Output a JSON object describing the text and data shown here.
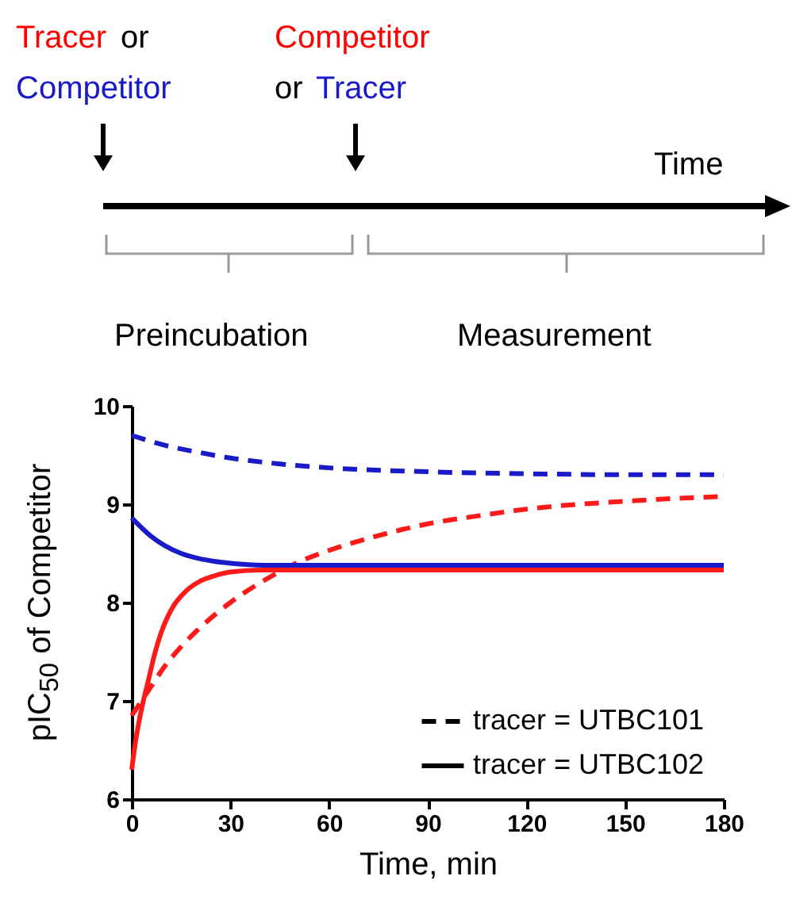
{
  "chart_data": {
    "type": "line",
    "xlabel": "Time, min",
    "ylabel": "pIC$_{50}$ of Competitor",
    "xlim": [
      0,
      180
    ],
    "xticks": [
      0,
      30,
      60,
      90,
      120,
      150,
      180
    ],
    "ylim": [
      6,
      10
    ],
    "yticks": [
      6,
      7,
      8,
      9,
      10
    ],
    "annotations": [
      "Tracer",
      "or",
      "Competitor",
      "Competitor",
      "or",
      "Tracer",
      "Time",
      "Preincubation",
      "Measurement",
      "tracer = UTBC101",
      "tracer = UTBC102"
    ],
    "series": [
      {
        "color": "#1a1ac8",
        "line_style": "dashed",
        "x": [
          0,
          10,
          20,
          30,
          45,
          60,
          90,
          120,
          150,
          180
        ],
        "values": [
          9.7,
          9.6,
          9.53,
          9.47,
          9.41,
          9.37,
          9.33,
          9.31,
          9.3,
          9.3
        ]
      },
      {
        "color": "#ff1a1a",
        "line_style": "dashed",
        "x": [
          0,
          5,
          10,
          15,
          20,
          30,
          40,
          50,
          60,
          75,
          90,
          105,
          120,
          150,
          180
        ],
        "values": [
          6.85,
          7.1,
          7.35,
          7.55,
          7.72,
          8.0,
          8.22,
          8.4,
          8.53,
          8.68,
          8.8,
          8.88,
          8.95,
          9.03,
          9.08
        ]
      },
      {
        "color": "#1a1ac8",
        "line_style": "solid",
        "x": [
          0,
          3,
          6,
          10,
          15,
          20,
          25,
          30,
          40,
          180
        ],
        "values": [
          8.86,
          8.76,
          8.67,
          8.58,
          8.5,
          8.45,
          8.42,
          8.4,
          8.38,
          8.38
        ]
      },
      {
        "color": "#ff1a1a",
        "line_style": "solid",
        "x": [
          0,
          1,
          2,
          3,
          5,
          7,
          9,
          11,
          13,
          16,
          21,
          25,
          30,
          40,
          180
        ],
        "values": [
          6.3,
          6.55,
          6.75,
          6.92,
          7.2,
          7.48,
          7.7,
          7.86,
          7.98,
          8.1,
          8.22,
          8.27,
          8.31,
          8.33,
          8.33
        ]
      }
    ]
  }
}
